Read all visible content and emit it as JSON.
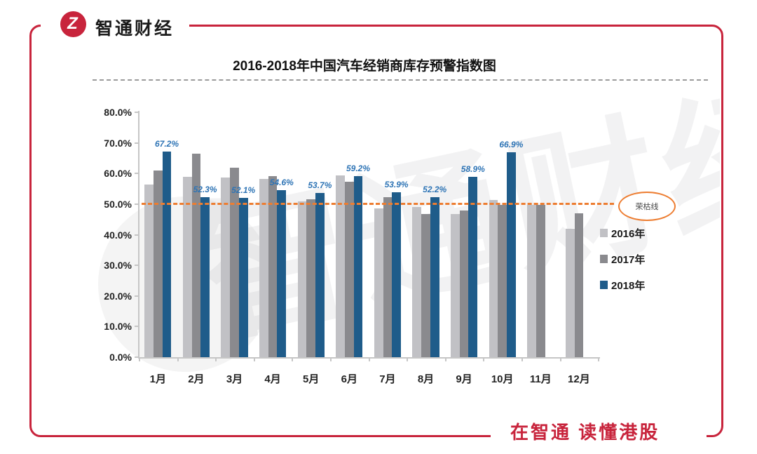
{
  "brand": {
    "name": "智通财经",
    "logo_glyph": "Z"
  },
  "footer": {
    "slogan": "在智通 读懂港股"
  },
  "colors": {
    "accent_red": "#C8243C",
    "threshold_orange": "#ED7D31",
    "data_label_blue": "#2E74B5"
  },
  "chart_data": {
    "type": "bar",
    "title": "2016-2018年中国汽车经销商库存预警指数图",
    "categories": [
      "1月",
      "2月",
      "3月",
      "4月",
      "5月",
      "6月",
      "7月",
      "8月",
      "9月",
      "10月",
      "11月",
      "12月"
    ],
    "series": [
      {
        "name": "2016年",
        "color": "#C1C1C5",
        "values": [
          56.3,
          58.8,
          58.6,
          58.2,
          50.9,
          59.3,
          48.7,
          49.0,
          46.7,
          51.3,
          49.7,
          42.0
        ]
      },
      {
        "name": "2017年",
        "color": "#8A8A8E",
        "values": [
          61.0,
          66.5,
          61.8,
          59.2,
          51.5,
          57.2,
          52.2,
          46.8,
          48.0,
          49.7,
          49.7,
          47.0
        ]
      },
      {
        "name": "2018年",
        "color": "#1F5C8A",
        "values": [
          67.2,
          52.3,
          52.1,
          54.6,
          53.7,
          59.2,
          53.9,
          52.2,
          58.9,
          66.9,
          null,
          null
        ],
        "labels": [
          "67.2%",
          "52.3%",
          "52.1%",
          "54.6%",
          "53.7%",
          "59.2%",
          "53.9%",
          "52.2%",
          "58.9%",
          "66.9%",
          "",
          ""
        ]
      }
    ],
    "y_ticks": [
      "0.0%",
      "10.0%",
      "20.0%",
      "30.0%",
      "40.0%",
      "50.0%",
      "60.0%",
      "70.0%",
      "80.0%"
    ],
    "ylim": [
      0,
      80
    ],
    "grid": false,
    "legend_position": "right",
    "threshold": {
      "label": "荣枯线",
      "value": 50
    },
    "watermark": "智通财经"
  }
}
